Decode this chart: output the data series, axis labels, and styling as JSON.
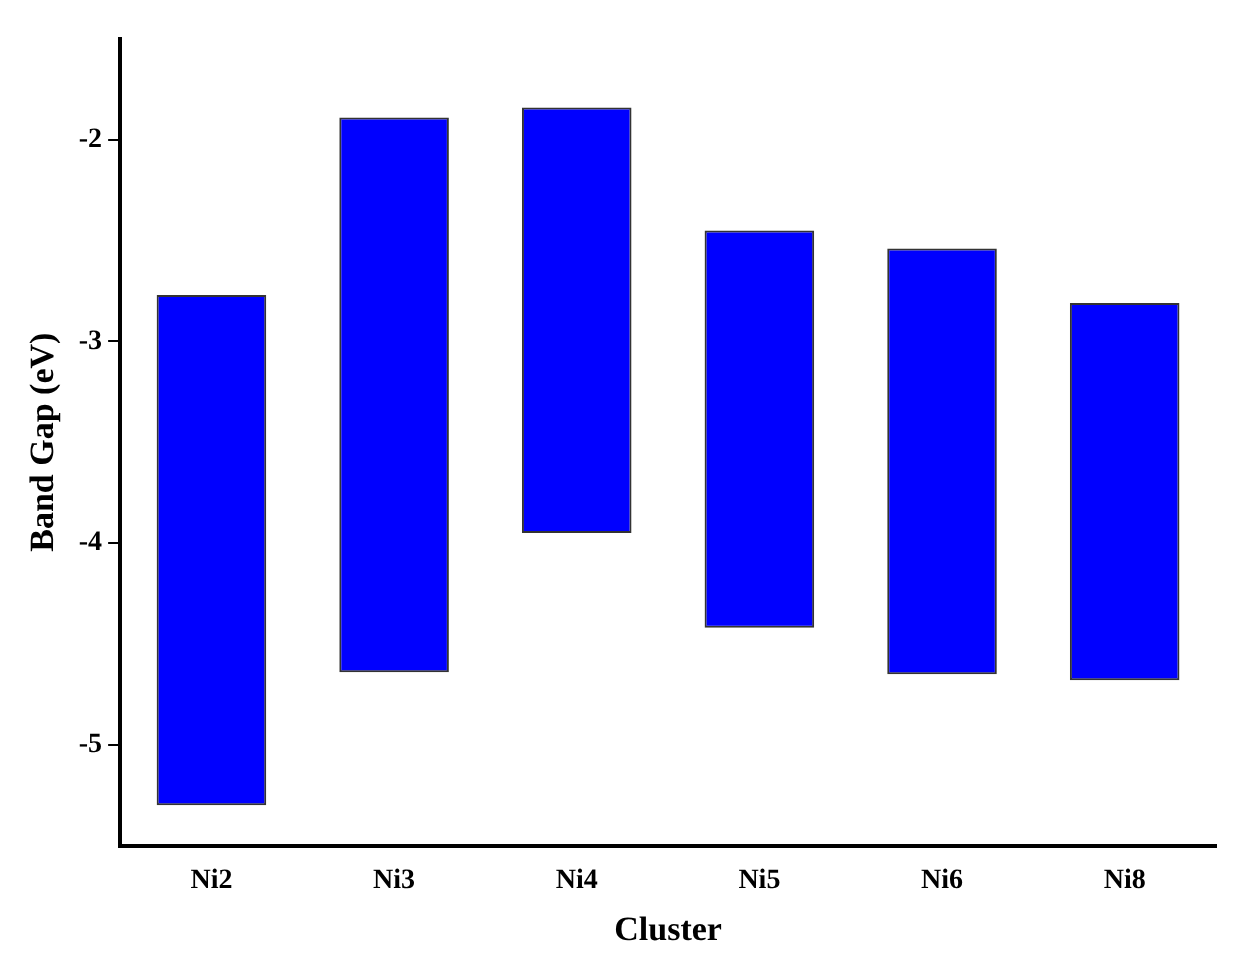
{
  "chart_data": {
    "type": "bar",
    "xlabel": "Cluster",
    "ylabel": "Band Gap (eV)",
    "categories": [
      "Ni2",
      "Ni3",
      "Ni4",
      "Ni5",
      "Ni6",
      "Ni8"
    ],
    "base": [
      -5.3,
      -4.64,
      -3.95,
      -4.42,
      -4.65,
      -4.68
    ],
    "values": [
      2.53,
      2.75,
      2.11,
      1.97,
      2.11,
      1.87
    ],
    "color": "#0000ff",
    "ylim": [
      -5.5,
      -1.5
    ],
    "yticks": [
      -5,
      -4,
      -3,
      -2
    ],
    "grid": false,
    "legend": false
  }
}
